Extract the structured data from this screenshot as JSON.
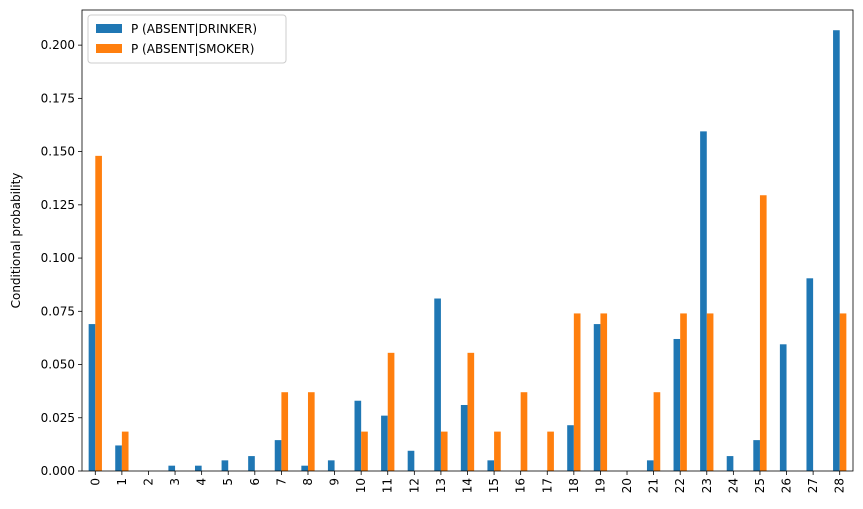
{
  "chart_data": {
    "type": "bar",
    "title": "",
    "xlabel": "",
    "ylabel": "Conditional probability",
    "ylim": [
      0,
      0.2165
    ],
    "yticks": [
      "0.000",
      "0.025",
      "0.050",
      "0.075",
      "0.100",
      "0.125",
      "0.150",
      "0.175",
      "0.200"
    ],
    "categories": [
      "0",
      "1",
      "2",
      "3",
      "4",
      "5",
      "6",
      "7",
      "8",
      "9",
      "10",
      "11",
      "12",
      "13",
      "14",
      "15",
      "16",
      "17",
      "18",
      "19",
      "20",
      "21",
      "22",
      "23",
      "24",
      "25",
      "26",
      "27",
      "28"
    ],
    "legend_position": "top-left",
    "grid": false,
    "series": [
      {
        "name": "P (ABSENT|DRINKER)",
        "color": "#1f77b4",
        "values": [
          0.069,
          0.012,
          0.0,
          0.0025,
          0.0025,
          0.005,
          0.007,
          0.0145,
          0.0025,
          0.005,
          0.033,
          0.026,
          0.0095,
          0.081,
          0.031,
          0.005,
          0.0,
          0.0,
          0.0215,
          0.069,
          0.0,
          0.005,
          0.062,
          0.1595,
          0.007,
          0.0145,
          0.0595,
          0.0905,
          0.207
        ]
      },
      {
        "name": "P (ABSENT|SMOKER)",
        "color": "#ff7f0e",
        "values": [
          0.148,
          0.0185,
          0.0,
          0.0,
          0.0,
          0.0,
          0.0,
          0.037,
          0.037,
          0.0,
          0.0185,
          0.0555,
          0.0,
          0.0185,
          0.0555,
          0.0185,
          0.037,
          0.0185,
          0.074,
          0.074,
          0.0,
          0.037,
          0.074,
          0.074,
          0.0,
          0.1295,
          0.0,
          0.0,
          0.074
        ]
      }
    ]
  }
}
